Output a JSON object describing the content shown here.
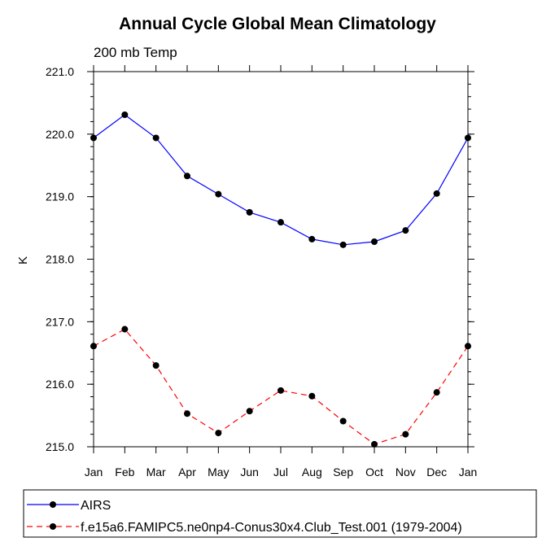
{
  "chart_data": {
    "type": "line",
    "title": "Annual Cycle Global Mean Climatology",
    "subtitle": "200 mb Temp",
    "xlabel": "",
    "ylabel": "K",
    "categories": [
      "Jan",
      "Feb",
      "Mar",
      "Apr",
      "May",
      "Jun",
      "Jul",
      "Aug",
      "Sep",
      "Oct",
      "Nov",
      "Dec",
      "Jan"
    ],
    "ylim": [
      215.0,
      221.0
    ],
    "yticks": [
      "215.0",
      "216.0",
      "217.0",
      "218.0",
      "219.0",
      "220.0",
      "221.0"
    ],
    "grid": false,
    "legend_placement": "bottom",
    "series": [
      {
        "name": "AIRS",
        "color": "#0000ff",
        "line_style": "solid",
        "values": [
          219.94,
          220.31,
          219.94,
          219.33,
          219.04,
          218.75,
          218.59,
          218.32,
          218.23,
          218.28,
          218.46,
          219.05,
          219.94
        ]
      },
      {
        "name": "f.e15a6.FAMIPC5.ne0np4-Conus30x4.Club_Test.001 (1979-2004)",
        "color": "#ff0000",
        "line_style": "dashed",
        "values": [
          216.61,
          216.88,
          216.3,
          215.53,
          215.22,
          215.57,
          215.9,
          215.81,
          215.41,
          215.04,
          215.2,
          215.87,
          216.61
        ]
      }
    ]
  }
}
